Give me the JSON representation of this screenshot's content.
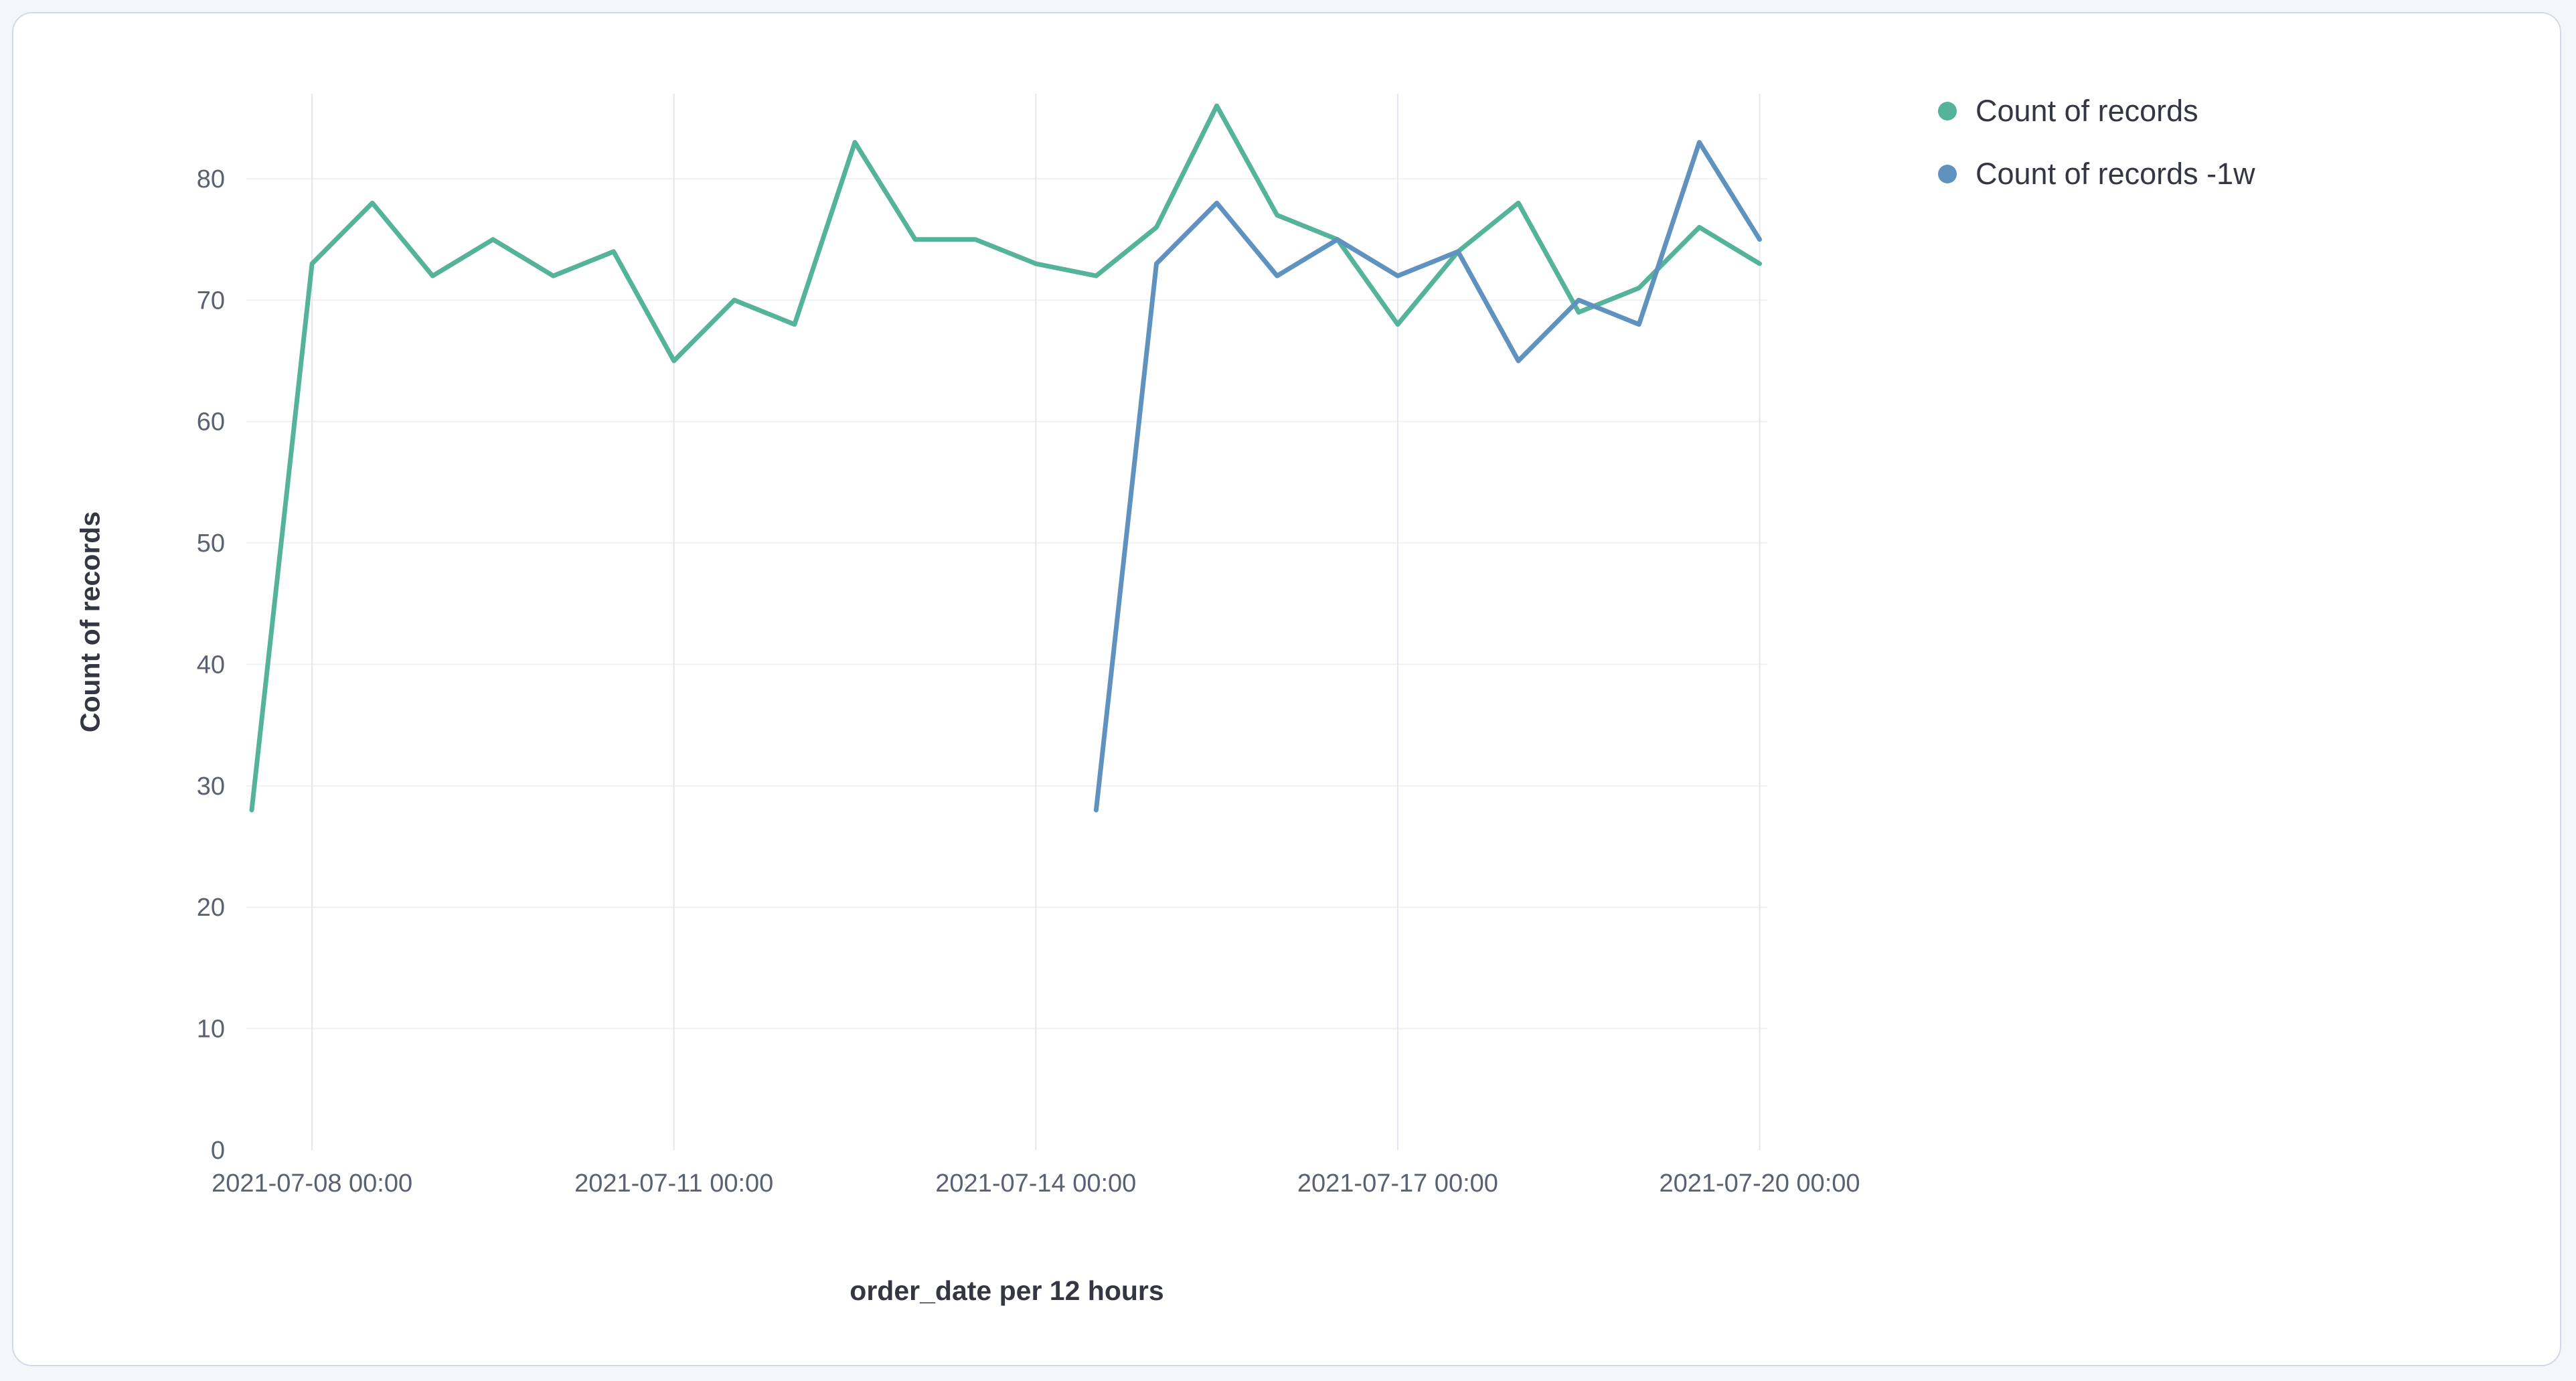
{
  "panel": {
    "background_color": "#ffffff",
    "border_color": "#d3dae6",
    "page_background": "#f4f6f9"
  },
  "chart_data": {
    "type": "line",
    "title": "",
    "xlabel": "order_date per 12 hours",
    "ylabel": "Count of records",
    "x_start": "2021-07-07 12:00",
    "x_interval_hours": 12,
    "x_tick_labels": [
      "2021-07-08 00:00",
      "2021-07-11 00:00",
      "2021-07-14 00:00",
      "2021-07-17 00:00",
      "2021-07-20 00:00"
    ],
    "x_tick_positions": [
      1,
      7,
      13,
      19,
      25
    ],
    "y_ticks": [
      0,
      10,
      20,
      30,
      40,
      50,
      60,
      70,
      80
    ],
    "ylim": [
      0,
      87
    ],
    "grid": true,
    "legend_position": "right",
    "series": [
      {
        "name": "Count of records",
        "color": "#54B399",
        "start_index": 0,
        "values": [
          28,
          73,
          78,
          72,
          75,
          72,
          74,
          65,
          70,
          68,
          83,
          75,
          75,
          73,
          72,
          76,
          86,
          77,
          75,
          68,
          74,
          78,
          69,
          71,
          76,
          73
        ]
      },
      {
        "name": "Count of records -1w",
        "color": "#6092C0",
        "start_index": 14,
        "values": [
          28,
          73,
          78,
          72,
          75,
          72,
          74,
          65,
          70,
          68,
          83,
          75
        ]
      }
    ],
    "grid_color_horizontal": "#eef1f6",
    "grid_color_vertical": "#e3e7ee"
  }
}
